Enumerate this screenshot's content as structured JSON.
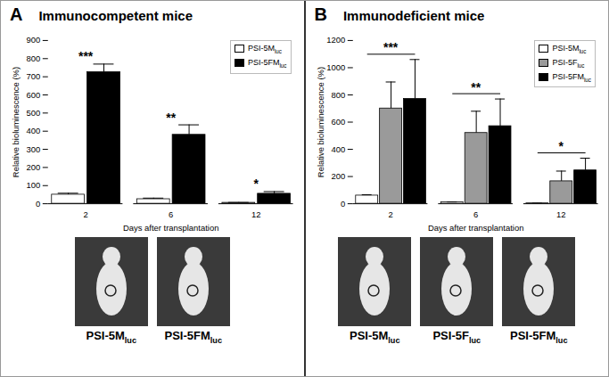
{
  "chart_data": [
    {
      "type": "bar",
      "panel": "A",
      "title": "Immunocompetent mice",
      "x_label": "Days after transplantation",
      "y_label": "Relative bioluminescence (%)",
      "categories": [
        2,
        6,
        12
      ],
      "series": [
        {
          "name": "PSI-5Mluc",
          "color": "#ffffff",
          "values": [
            50,
            25,
            5
          ],
          "errors": [
            8,
            6,
            2
          ]
        },
        {
          "name": "PSI-5FMluc",
          "color": "#000000",
          "values": [
            725,
            380,
            55
          ],
          "errors": [
            45,
            55,
            12
          ]
        }
      ],
      "annotations": [
        "***",
        "**",
        "*"
      ],
      "ylim": [
        0,
        900
      ],
      "yticks": [
        0,
        100,
        200,
        300,
        400,
        500,
        600,
        700,
        800,
        900
      ],
      "legend": "top-right",
      "image_labels": [
        "PSI-5Mluc",
        "PSI-5FMluc"
      ]
    },
    {
      "type": "bar",
      "panel": "B",
      "title": "Immunodeficient mice",
      "x_label": "Days after transplantation",
      "y_label": "Relative bioluminescence (%)",
      "categories": [
        2,
        6,
        12
      ],
      "series": [
        {
          "name": "PSI-5Mluc",
          "color": "#ffffff",
          "values": [
            60,
            10,
            3
          ],
          "errors": [
            6,
            3,
            1
          ]
        },
        {
          "name": "PSI-5Fluc",
          "color": "#9a9a9a",
          "values": [
            700,
            520,
            165
          ],
          "errors": [
            195,
            160,
            75
          ]
        },
        {
          "name": "PSI-5FMluc",
          "color": "#000000",
          "values": [
            770,
            570,
            245
          ],
          "errors": [
            290,
            200,
            90
          ]
        }
      ],
      "annotations": [
        "***",
        "**",
        "*"
      ],
      "ylim": [
        0,
        1200
      ],
      "yticks": [
        0,
        200,
        400,
        600,
        800,
        1000,
        1200
      ],
      "legend": "top-right",
      "image_labels": [
        "PSI-5Mluc",
        "PSI-5Fluc",
        "PSI-5FMluc"
      ]
    }
  ]
}
